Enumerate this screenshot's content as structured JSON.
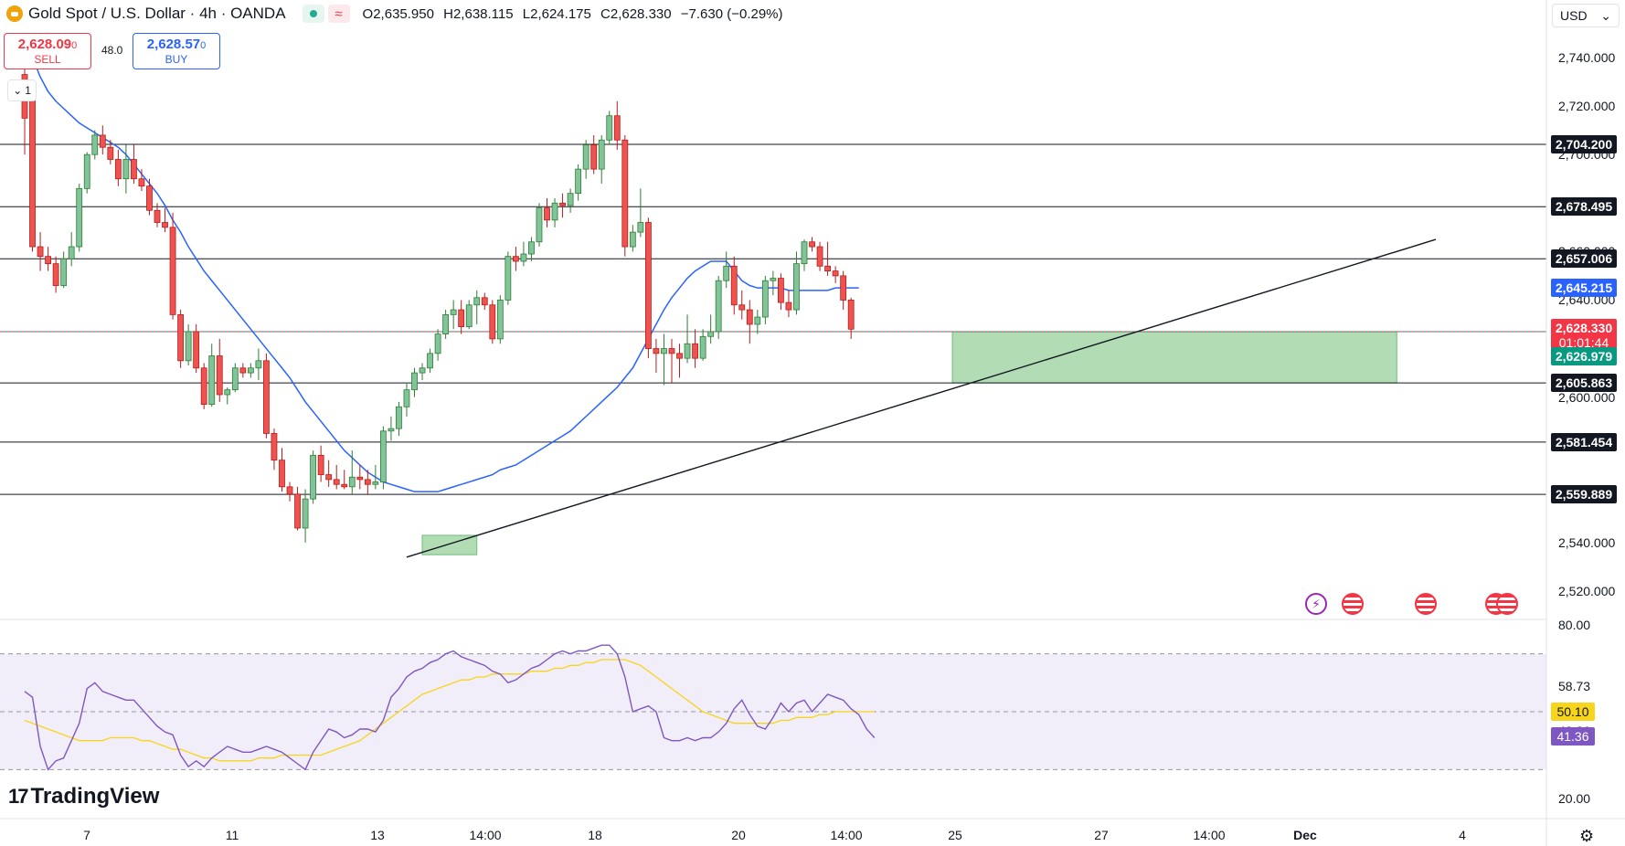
{
  "header": {
    "symbol": "Gold Spot / U.S. Dollar · 4h · OANDA",
    "open_key": "O",
    "open": "2,635.950",
    "high_key": "H",
    "high": "2,638.115",
    "low_key": "L",
    "low": "2,624.175",
    "close_key": "C",
    "close": "2,628.330",
    "change": "−7.630 (−0.29%)",
    "wave_icon": "≈"
  },
  "trade": {
    "sell_price": "2,628.09",
    "sell_price_small": "0",
    "sell_label": "SELL",
    "buy_price": "2,628.57",
    "buy_price_small": "0",
    "buy_label": "BUY",
    "spread": "48.0"
  },
  "interval_badge": "1",
  "currency": "USD",
  "currency_caret": "⌄",
  "price_axis": [
    {
      "label": "2,740.000",
      "value": 2740
    },
    {
      "label": "2,720.000",
      "value": 2720
    },
    {
      "label": "2,700.000",
      "value": 2700
    },
    {
      "label": "2,680.000",
      "value": 2680
    },
    {
      "label": "2,660.000",
      "value": 2660
    },
    {
      "label": "2,640.000",
      "value": 2640
    },
    {
      "label": "2,600.000",
      "value": 2600
    },
    {
      "label": "2,540.000",
      "value": 2540
    },
    {
      "label": "2,520.000",
      "value": 2520
    }
  ],
  "levels": [
    {
      "label": "2,704.200",
      "value": 2704.2
    },
    {
      "label": "2,678.495",
      "value": 2678.495
    },
    {
      "label": "2,657.006",
      "value": 2657.006
    },
    {
      "label": "2,605.863",
      "value": 2605.863
    },
    {
      "label": "2,581.454",
      "value": 2581.454
    },
    {
      "label": "2,559.889",
      "value": 2559.889
    }
  ],
  "ma_label": {
    "text": "2,645.215",
    "value": 2645.215,
    "color": "#2962ff"
  },
  "last_price": {
    "text": "2,628.330",
    "countdown": "01:01:44",
    "value": 2628.33,
    "color": "#f23645"
  },
  "support_label": {
    "text": "2,626.979",
    "value": 2626.979,
    "color": "#089981"
  },
  "rsi": {
    "axis": [
      {
        "label": "80.00",
        "value": 80
      },
      {
        "label": "58.73",
        "value": 58.73
      },
      {
        "label": "43.26",
        "value": 43.26
      },
      {
        "label": "20.00",
        "value": 20
      }
    ],
    "ma_value": "50.10",
    "ma_color": "#f7d51d",
    "rsi_value": "41.36",
    "rsi_color": "#7e57c2",
    "upper_band": 70,
    "lower_band": 30,
    "middle": 50
  },
  "time_axis": [
    "7",
    "11",
    "13",
    "14:00",
    "18",
    "20",
    "14:00",
    "25",
    "27",
    "14:00",
    "Dec",
    "4"
  ],
  "branding": "TradingView",
  "branding_mark": "17",
  "colors": {
    "up": "#26a69a",
    "up_fill": "#81c49a",
    "down": "#ef5350",
    "ma": "#2962ff",
    "zone": "#a5d6a7"
  },
  "chart_data": {
    "type": "candlestick",
    "timeframe": "4h",
    "ylim": [
      2510,
      2752
    ],
    "candles": [
      [
        2733,
        2740,
        2700,
        2715
      ],
      [
        2725,
        2728,
        2660,
        2662
      ],
      [
        2662,
        2668,
        2652,
        2658
      ],
      [
        2658,
        2662,
        2652,
        2655
      ],
      [
        2655,
        2658,
        2643,
        2646
      ],
      [
        2646,
        2660,
        2645,
        2657
      ],
      [
        2657,
        2668,
        2654,
        2662
      ],
      [
        2662,
        2688,
        2660,
        2686
      ],
      [
        2686,
        2701,
        2684,
        2700
      ],
      [
        2700,
        2710,
        2698,
        2708
      ],
      [
        2708,
        2712,
        2700,
        2703
      ],
      [
        2703,
        2706,
        2696,
        2698
      ],
      [
        2698,
        2702,
        2687,
        2690
      ],
      [
        2690,
        2704,
        2684,
        2698
      ],
      [
        2698,
        2704,
        2688,
        2690
      ],
      [
        2690,
        2694,
        2685,
        2687
      ],
      [
        2687,
        2690,
        2675,
        2677
      ],
      [
        2677,
        2680,
        2670,
        2672
      ],
      [
        2672,
        2678,
        2668,
        2670
      ],
      [
        2670,
        2676,
        2632,
        2634
      ],
      [
        2634,
        2636,
        2612,
        2615
      ],
      [
        2615,
        2630,
        2613,
        2627
      ],
      [
        2627,
        2630,
        2610,
        2612
      ],
      [
        2612,
        2614,
        2595,
        2597
      ],
      [
        2597,
        2622,
        2596,
        2617
      ],
      [
        2617,
        2624,
        2598,
        2601
      ],
      [
        2601,
        2604,
        2597,
        2603
      ],
      [
        2603,
        2614,
        2602,
        2612
      ],
      [
        2612,
        2614,
        2608,
        2610
      ],
      [
        2610,
        2614,
        2608,
        2612
      ],
      [
        2612,
        2620,
        2607,
        2615
      ],
      [
        2615,
        2618,
        2583,
        2585
      ],
      [
        2585,
        2587,
        2570,
        2574
      ],
      [
        2574,
        2579,
        2561,
        2563
      ],
      [
        2563,
        2565,
        2557,
        2560
      ],
      [
        2560,
        2563,
        2545,
        2546
      ],
      [
        2546,
        2562,
        2540,
        2558
      ],
      [
        2558,
        2578,
        2556,
        2576
      ],
      [
        2576,
        2580,
        2565,
        2568
      ],
      [
        2568,
        2574,
        2563,
        2566
      ],
      [
        2566,
        2572,
        2562,
        2564
      ],
      [
        2564,
        2570,
        2562,
        2563
      ],
      [
        2563,
        2578,
        2560,
        2567
      ],
      [
        2567,
        2572,
        2562,
        2566
      ],
      [
        2566,
        2570,
        2560,
        2564
      ],
      [
        2564,
        2572,
        2562,
        2565
      ],
      [
        2565,
        2588,
        2562,
        2586
      ],
      [
        2586,
        2592,
        2582,
        2587
      ],
      [
        2587,
        2598,
        2584,
        2596
      ],
      [
        2596,
        2606,
        2592,
        2603
      ],
      [
        2603,
        2612,
        2600,
        2610
      ],
      [
        2610,
        2614,
        2607,
        2612
      ],
      [
        2612,
        2620,
        2610,
        2618
      ],
      [
        2618,
        2628,
        2615,
        2626
      ],
      [
        2626,
        2636,
        2624,
        2634
      ],
      [
        2634,
        2640,
        2628,
        2636
      ],
      [
        2636,
        2640,
        2626,
        2629
      ],
      [
        2629,
        2640,
        2628,
        2638
      ],
      [
        2638,
        2644,
        2630,
        2641
      ],
      [
        2641,
        2643,
        2636,
        2638
      ],
      [
        2638,
        2640,
        2622,
        2624
      ],
      [
        2624,
        2642,
        2622,
        2640
      ],
      [
        2640,
        2660,
        2638,
        2658
      ],
      [
        2658,
        2662,
        2652,
        2656
      ],
      [
        2656,
        2664,
        2654,
        2659
      ],
      [
        2659,
        2666,
        2656,
        2664
      ],
      [
        2664,
        2680,
        2662,
        2678
      ],
      [
        2678,
        2682,
        2670,
        2673
      ],
      [
        2673,
        2682,
        2670,
        2680
      ],
      [
        2680,
        2684,
        2674,
        2679
      ],
      [
        2679,
        2686,
        2676,
        2684
      ],
      [
        2684,
        2696,
        2681,
        2694
      ],
      [
        2694,
        2706,
        2690,
        2704
      ],
      [
        2704,
        2708,
        2692,
        2694
      ],
      [
        2694,
        2708,
        2688,
        2706
      ],
      [
        2706,
        2718,
        2704,
        2716
      ],
      [
        2716,
        2722,
        2702,
        2706
      ],
      [
        2706,
        2708,
        2658,
        2662
      ],
      [
        2662,
        2671,
        2660,
        2668
      ],
      [
        2668,
        2686,
        2666,
        2672
      ],
      [
        2672,
        2674,
        2616,
        2620
      ],
      [
        2620,
        2624,
        2610,
        2618
      ],
      [
        2618,
        2626,
        2605,
        2620
      ],
      [
        2620,
        2624,
        2606,
        2618
      ],
      [
        2618,
        2622,
        2608,
        2616
      ],
      [
        2616,
        2634,
        2614,
        2622
      ],
      [
        2622,
        2628,
        2612,
        2616
      ],
      [
        2616,
        2628,
        2615,
        2625
      ],
      [
        2625,
        2634,
        2622,
        2627
      ],
      [
        2627,
        2650,
        2624,
        2648
      ],
      [
        2648,
        2660,
        2645,
        2654
      ],
      [
        2654,
        2658,
        2634,
        2638
      ],
      [
        2638,
        2644,
        2632,
        2636
      ],
      [
        2636,
        2640,
        2622,
        2630
      ],
      [
        2630,
        2636,
        2626,
        2633
      ],
      [
        2633,
        2650,
        2630,
        2648
      ],
      [
        2648,
        2652,
        2642,
        2649
      ],
      [
        2649,
        2651,
        2636,
        2639
      ],
      [
        2639,
        2644,
        2633,
        2636
      ],
      [
        2636,
        2660,
        2634,
        2655
      ],
      [
        2655,
        2665,
        2652,
        2664
      ],
      [
        2664,
        2666,
        2660,
        2662
      ],
      [
        2662,
        2664,
        2652,
        2654
      ],
      [
        2654,
        2664,
        2650,
        2652
      ],
      [
        2652,
        2654,
        2647,
        2650
      ],
      [
        2650,
        2652,
        2636,
        2640
      ],
      [
        2640,
        2641,
        2624,
        2628
      ]
    ],
    "moving_average": [
      2748,
      2740,
      2732,
      2726,
      2722,
      2719,
      2716,
      2713,
      2711,
      2709,
      2707,
      2705,
      2703,
      2700,
      2696,
      2692,
      2688,
      2684,
      2679,
      2673,
      2668,
      2662,
      2657,
      2652,
      2648,
      2644,
      2640,
      2636,
      2632,
      2628,
      2624,
      2620,
      2616,
      2612,
      2608,
      2603,
      2598,
      2594,
      2590,
      2586,
      2582,
      2578,
      2575,
      2572,
      2569,
      2567,
      2565,
      2564,
      2563,
      2562,
      2561,
      2561,
      2561,
      2561,
      2562,
      2563,
      2564,
      2565,
      2566,
      2567,
      2568,
      2570,
      2571,
      2572,
      2574,
      2576,
      2578,
      2580,
      2582,
      2584,
      2586,
      2589,
      2592,
      2595,
      2598,
      2601,
      2604,
      2608,
      2612,
      2618,
      2624,
      2630,
      2636,
      2641,
      2645,
      2649,
      2652,
      2654,
      2656,
      2656,
      2656,
      2652,
      2648,
      2646,
      2645,
      2645,
      2645,
      2645,
      2644,
      2644,
      2644,
      2644,
      2644,
      2644,
      2645,
      2645,
      2645,
      2645
    ],
    "trendline": {
      "from_index": 49,
      "from_value": 2534,
      "to_index": 181,
      "to_value": 2665
    },
    "zones": [
      {
        "start_index": 51,
        "end_index": 58,
        "top": 2543,
        "bottom": 2535
      },
      {
        "start_index": 119,
        "end_index": 176,
        "top": 2626.979,
        "bottom": 2605.863
      }
    ],
    "rsi_series": [
      57,
      55,
      38,
      30,
      33,
      34,
      40,
      46,
      58,
      60,
      57,
      56,
      55,
      54,
      54,
      51,
      48,
      45,
      43,
      42,
      35,
      31,
      33,
      31,
      34,
      36,
      38,
      37,
      36,
      36,
      37,
      38,
      37,
      36,
      34,
      32,
      30,
      36,
      40,
      44,
      43,
      41,
      42,
      44,
      44,
      43,
      47,
      55,
      58,
      62,
      64,
      65,
      67,
      68,
      70,
      71,
      69,
      68,
      67,
      66,
      64,
      63,
      60,
      61,
      63,
      65,
      66,
      68,
      70,
      71,
      70,
      71,
      71,
      72,
      73,
      73,
      70,
      62,
      50,
      51,
      52,
      50,
      41,
      40,
      40,
      41,
      40,
      41,
      41,
      43,
      46,
      51,
      54,
      49,
      45,
      44,
      48,
      53,
      50,
      53,
      54,
      50,
      53,
      56,
      55,
      54,
      51,
      49,
      44,
      41
    ],
    "rsi_ma": [
      47,
      46,
      45,
      44,
      43,
      42,
      41,
      40,
      40,
      40,
      40,
      41,
      41,
      41,
      41,
      40,
      40,
      39,
      38,
      37,
      37,
      36,
      35,
      34,
      34,
      33,
      33,
      33,
      33,
      33,
      34,
      34,
      34,
      35,
      35,
      35,
      35,
      35,
      35,
      36,
      37,
      38,
      39,
      40,
      42,
      44,
      46,
      48,
      50,
      52,
      54,
      56,
      57,
      58,
      59,
      60,
      61,
      61,
      62,
      62,
      63,
      63,
      63,
      63,
      63,
      64,
      64,
      64,
      65,
      65,
      66,
      66,
      67,
      67,
      68,
      68,
      68,
      68,
      67,
      66,
      64,
      62,
      60,
      58,
      56,
      54,
      52,
      50,
      49,
      48,
      47,
      46,
      46,
      46,
      46,
      46,
      46,
      47,
      47,
      48,
      48,
      48,
      49,
      49,
      50,
      50,
      50,
      50,
      50,
      50
    ]
  }
}
